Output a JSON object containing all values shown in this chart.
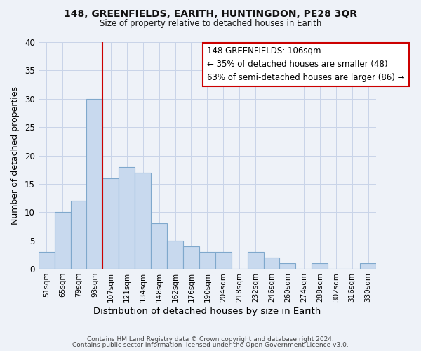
{
  "title": "148, GREENFIELDS, EARITH, HUNTINGDON, PE28 3QR",
  "subtitle": "Size of property relative to detached houses in Earith",
  "xlabel": "Distribution of detached houses by size in Earith",
  "ylabel": "Number of detached properties",
  "bar_color": "#c8d9ee",
  "bar_edge_color": "#7fa8cc",
  "categories": [
    "51sqm",
    "65sqm",
    "79sqm",
    "93sqm",
    "107sqm",
    "121sqm",
    "134sqm",
    "148sqm",
    "162sqm",
    "176sqm",
    "190sqm",
    "204sqm",
    "218sqm",
    "232sqm",
    "246sqm",
    "260sqm",
    "274sqm",
    "288sqm",
    "302sqm",
    "316sqm",
    "330sqm"
  ],
  "values": [
    3,
    10,
    12,
    30,
    16,
    18,
    17,
    8,
    5,
    4,
    3,
    3,
    0,
    3,
    2,
    1,
    0,
    1,
    0,
    0,
    1
  ],
  "ylim": [
    0,
    40
  ],
  "yticks": [
    0,
    5,
    10,
    15,
    20,
    25,
    30,
    35,
    40
  ],
  "vline_x_idx": 4,
  "vline_color": "#cc0000",
  "annotation_title": "148 GREENFIELDS: 106sqm",
  "annotation_line1": "← 35% of detached houses are smaller (48)",
  "annotation_line2": "63% of semi-detached houses are larger (86) →",
  "annotation_box_color": "#ffffff",
  "annotation_box_edge": "#cc0000",
  "grid_color": "#c8d4e8",
  "background_color": "#eef2f8",
  "plot_bg_color": "#eef2f8",
  "footer1": "Contains HM Land Registry data © Crown copyright and database right 2024.",
  "footer2": "Contains public sector information licensed under the Open Government Licence v3.0."
}
